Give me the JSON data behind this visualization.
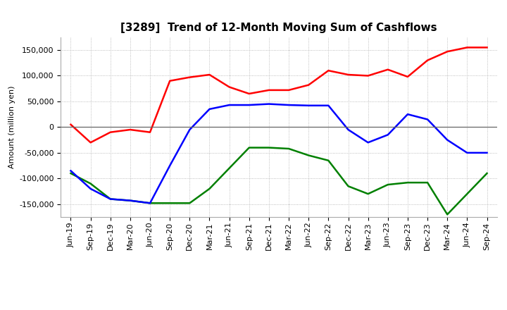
{
  "title": "[3289]  Trend of 12-Month Moving Sum of Cashflows",
  "ylabel": "Amount (million yen)",
  "x_labels": [
    "Jun-19",
    "Sep-19",
    "Dec-19",
    "Mar-20",
    "Jun-20",
    "Sep-20",
    "Dec-20",
    "Mar-21",
    "Jun-21",
    "Sep-21",
    "Dec-21",
    "Mar-22",
    "Jun-22",
    "Sep-22",
    "Dec-22",
    "Mar-23",
    "Jun-23",
    "Sep-23",
    "Dec-23",
    "Mar-24",
    "Jun-24",
    "Sep-24"
  ],
  "operating": [
    5000,
    -30000,
    -10000,
    -5000,
    -10000,
    90000,
    97000,
    102000,
    78000,
    65000,
    72000,
    72000,
    82000,
    110000,
    102000,
    100000,
    112000,
    98000,
    130000,
    147000,
    155000,
    155000
  ],
  "investing": [
    -90000,
    -110000,
    -140000,
    -143000,
    -148000,
    -148000,
    -148000,
    -120000,
    -80000,
    -40000,
    -40000,
    -42000,
    -55000,
    -65000,
    -115000,
    -130000,
    -112000,
    -108000,
    -108000,
    -170000,
    -130000,
    -90000
  ],
  "free": [
    -85000,
    -120000,
    -140000,
    -143000,
    -148000,
    -75000,
    -5000,
    35000,
    43000,
    43000,
    45000,
    43000,
    42000,
    42000,
    -5000,
    -30000,
    -15000,
    25000,
    15000,
    -25000,
    -50000,
    -50000
  ],
  "operating_color": "#ff0000",
  "investing_color": "#008000",
  "free_color": "#0000ff",
  "ylim": [
    -175000,
    175000
  ],
  "yticks": [
    -150000,
    -100000,
    -50000,
    0,
    50000,
    100000,
    150000
  ],
  "grid_color": "#aaaaaa",
  "background_color": "#ffffff",
  "title_fontsize": 11,
  "axis_fontsize": 8,
  "ylabel_fontsize": 8,
  "linewidth": 1.8
}
